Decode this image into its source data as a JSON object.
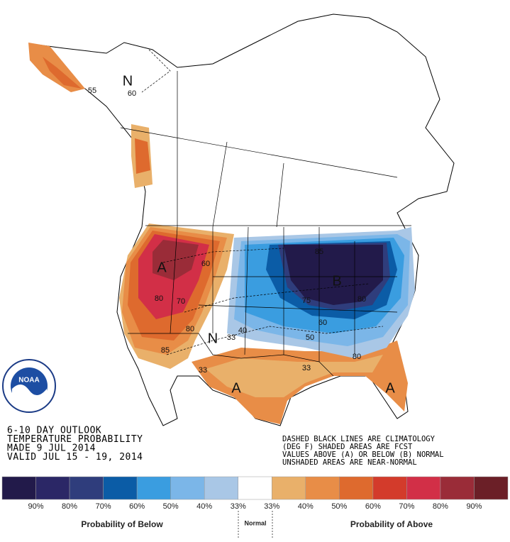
{
  "title_lines": [
    "6-10 DAY OUTLOOK",
    "TEMPERATURE PROBABILITY",
    "MADE  9 JUL 2014",
    "VALID  JUL 15 - 19, 2014"
  ],
  "notes": [
    "DASHED BLACK LINES ARE CLIMATOLOGY",
    "(DEG F) SHADED AREAS ARE FCST",
    "VALUES ABOVE (A) OR BELOW (B) NORMAL",
    "UNSHADED AREAS ARE NEAR-NORMAL"
  ],
  "logo": "NOAA",
  "map_labels": [
    "A",
    "A",
    "A",
    "B",
    "N",
    "N",
    "80",
    "60",
    "70",
    "80",
    "33",
    "40",
    "50",
    "60",
    "80",
    "75",
    "85",
    "33",
    "33",
    "80",
    "60",
    "55",
    "85"
  ],
  "legend": {
    "colors": [
      "#221a4a",
      "#2b2766",
      "#2f3d7c",
      "#0b5ca6",
      "#3a9de0",
      "#7bb6e8",
      "#a9c7e6",
      "#ffffff",
      "#e9b06a",
      "#e88d47",
      "#de6a2e",
      "#d33b2b",
      "#d22f47",
      "#9a2c38",
      "#6b1f27"
    ],
    "labels": [
      "90%",
      "80%",
      "70%",
      "60%",
      "50%",
      "40%",
      "33%",
      "33%",
      "40%",
      "50%",
      "60%",
      "70%",
      "80%",
      "90%"
    ],
    "below": "Probability of Below",
    "normal": "Normal",
    "above": "Probability of Above"
  }
}
